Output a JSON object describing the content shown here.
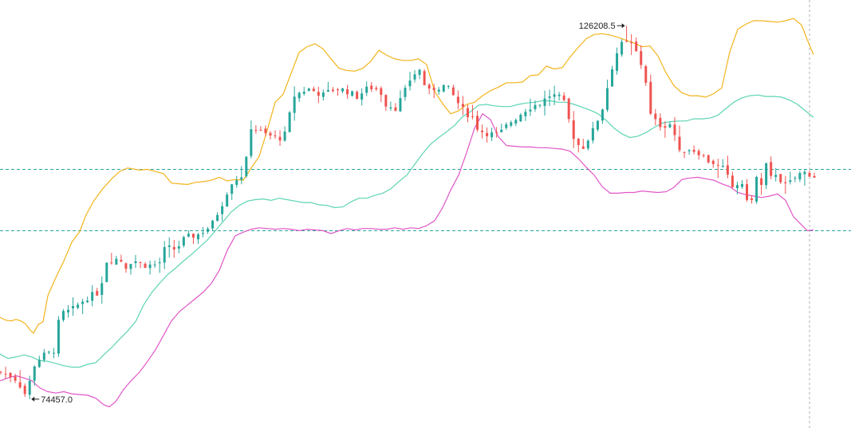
{
  "chart_data": {
    "type": "candlestick",
    "indicator": "bollinger-bands",
    "annotations": {
      "high_label": "126208.5",
      "low_label": "74457.0"
    },
    "price_range": {
      "y_max": 128000,
      "y_min": 73000
    },
    "reference_lines": [
      {
        "name": "upper-reference",
        "value": 106300,
        "style": "dashed",
        "color": "#26a69a"
      },
      {
        "name": "lower-reference",
        "value": 97800,
        "style": "dashed",
        "color": "#26a69a"
      }
    ],
    "last_price_marker": {
      "style": "dashed",
      "color": "#b0b0b0"
    },
    "colors": {
      "up": "#26a69a",
      "down": "#ef5350",
      "upper_band": "#f2b41b",
      "middle_band": "#5dd4b4",
      "lower_band": "#e056c8"
    },
    "candle_count": 170,
    "close_path": [
      [
        0,
        78200
      ],
      [
        10,
        77500
      ],
      [
        17,
        75800
      ],
      [
        19,
        74900
      ],
      [
        26,
        79500
      ],
      [
        32,
        80500
      ],
      [
        40,
        81000
      ],
      [
        45,
        86200
      ],
      [
        54,
        86800
      ],
      [
        65,
        88500
      ],
      [
        75,
        89300
      ],
      [
        80,
        93600
      ],
      [
        90,
        94000
      ],
      [
        95,
        92800
      ],
      [
        100,
        93800
      ],
      [
        110,
        93000
      ],
      [
        120,
        93100
      ],
      [
        125,
        95500
      ],
      [
        133,
        95200
      ],
      [
        140,
        96800
      ],
      [
        150,
        97300
      ],
      [
        160,
        98500
      ],
      [
        168,
        101500
      ],
      [
        175,
        104500
      ],
      [
        185,
        105700
      ],
      [
        190,
        112200
      ],
      [
        200,
        111200
      ],
      [
        207,
        110800
      ],
      [
        215,
        110600
      ],
      [
        223,
        116500
      ],
      [
        233,
        117500
      ],
      [
        245,
        116600
      ],
      [
        255,
        117600
      ],
      [
        265,
        117000
      ],
      [
        270,
        116300
      ],
      [
        280,
        117700
      ],
      [
        288,
        117300
      ],
      [
        292,
        115400
      ],
      [
        300,
        114800
      ],
      [
        306,
        116700
      ],
      [
        312,
        119200
      ],
      [
        318,
        120100
      ],
      [
        324,
        116900
      ],
      [
        330,
        117600
      ],
      [
        338,
        117900
      ],
      [
        343,
        116700
      ],
      [
        348,
        115300
      ],
      [
        353,
        114100
      ],
      [
        358,
        113700
      ],
      [
        363,
        111700
      ],
      [
        370,
        111300
      ],
      [
        378,
        111000
      ],
      [
        386,
        112700
      ],
      [
        393,
        113700
      ],
      [
        400,
        114800
      ],
      [
        410,
        115500
      ],
      [
        418,
        116700
      ],
      [
        427,
        116000
      ],
      [
        435,
        110900
      ],
      [
        441,
        109000
      ],
      [
        450,
        111700
      ],
      [
        458,
        115200
      ],
      [
        463,
        119700
      ],
      [
        470,
        123500
      ],
      [
        478,
        123900
      ],
      [
        485,
        121800
      ],
      [
        490,
        118500
      ],
      [
        494,
        113400
      ],
      [
        502,
        112300
      ],
      [
        510,
        112700
      ],
      [
        515,
        108500
      ],
      [
        522,
        109200
      ],
      [
        530,
        108700
      ],
      [
        538,
        107400
      ],
      [
        542,
        107200
      ],
      [
        546,
        106400
      ],
      [
        550,
        106400
      ],
      [
        555,
        103700
      ],
      [
        559,
        104300
      ],
      [
        563,
        103900
      ],
      [
        566,
        102600
      ],
      [
        570,
        101500
      ],
      [
        574,
        105200
      ],
      [
        578,
        103900
      ],
      [
        582,
        107300
      ],
      [
        586,
        104400
      ],
      [
        590,
        106400
      ],
      [
        594,
        103800
      ],
      [
        600,
        104500
      ],
      [
        606,
        105600
      ],
      [
        612,
        105900
      ],
      [
        618,
        105300
      ]
    ],
    "upper_band_path": [
      [
        0,
        85800
      ],
      [
        7,
        85400
      ],
      [
        14,
        85300
      ],
      [
        20,
        85500
      ],
      [
        26,
        85300
      ],
      [
        32,
        84900
      ],
      [
        38,
        84000
      ],
      [
        42,
        83600
      ],
      [
        48,
        84800
      ],
      [
        54,
        85200
      ],
      [
        60,
        88800
      ],
      [
        70,
        91300
      ],
      [
        80,
        93600
      ],
      [
        90,
        96200
      ],
      [
        100,
        97700
      ],
      [
        108,
        100000
      ],
      [
        118,
        102000
      ],
      [
        128,
        103500
      ],
      [
        140,
        105000
      ],
      [
        150,
        106000
      ],
      [
        160,
        106500
      ],
      [
        175,
        106200
      ],
      [
        185,
        106300
      ],
      [
        195,
        106000
      ],
      [
        205,
        105700
      ],
      [
        215,
        104400
      ],
      [
        225,
        104300
      ],
      [
        235,
        104200
      ],
      [
        245,
        104500
      ],
      [
        255,
        104600
      ],
      [
        265,
        104800
      ],
      [
        275,
        105200
      ],
      [
        285,
        104700
      ],
      [
        295,
        104900
      ],
      [
        305,
        104800
      ],
      [
        315,
        106500
      ],
      [
        325,
        108100
      ],
      [
        335,
        111700
      ],
      [
        345,
        115600
      ],
      [
        355,
        116700
      ],
      [
        365,
        119600
      ],
      [
        375,
        122500
      ],
      [
        385,
        123300
      ],
      [
        395,
        123700
      ],
      [
        405,
        123000
      ],
      [
        415,
        121600
      ],
      [
        425,
        120300
      ],
      [
        435,
        120000
      ],
      [
        445,
        119900
      ],
      [
        455,
        120300
      ],
      [
        465,
        121300
      ],
      [
        475,
        122800
      ],
      [
        485,
        122100
      ],
      [
        495,
        121600
      ],
      [
        505,
        121400
      ],
      [
        515,
        121400
      ],
      [
        525,
        121600
      ],
      [
        535,
        120800
      ],
      [
        545,
        117100
      ],
      [
        555,
        115400
      ],
      [
        565,
        114000
      ],
      [
        575,
        114400
      ],
      [
        585,
        115300
      ],
      [
        595,
        115600
      ],
      [
        605,
        116500
      ],
      [
        615,
        117200
      ],
      [
        625,
        117700
      ],
      [
        635,
        118300
      ],
      [
        645,
        118300
      ],
      [
        655,
        118400
      ],
      [
        665,
        119300
      ],
      [
        675,
        119400
      ],
      [
        685,
        120600
      ],
      [
        695,
        120200
      ],
      [
        705,
        120400
      ],
      [
        715,
        121900
      ],
      [
        725,
        123200
      ],
      [
        735,
        124400
      ],
      [
        745,
        125000
      ],
      [
        755,
        125100
      ],
      [
        765,
        124900
      ],
      [
        775,
        124600
      ],
      [
        785,
        124200
      ],
      [
        795,
        123800
      ],
      [
        805,
        123300
      ],
      [
        815,
        123400
      ],
      [
        825,
        122000
      ],
      [
        835,
        119700
      ],
      [
        845,
        117900
      ],
      [
        855,
        116900
      ],
      [
        865,
        116500
      ],
      [
        875,
        116500
      ],
      [
        885,
        116300
      ],
      [
        895,
        116800
      ],
      [
        905,
        117600
      ],
      [
        915,
        122600
      ],
      [
        925,
        125700
      ],
      [
        935,
        126400
      ],
      [
        945,
        126900
      ],
      [
        955,
        126900
      ],
      [
        965,
        126800
      ],
      [
        975,
        126700
      ],
      [
        985,
        126900
      ],
      [
        995,
        127200
      ],
      [
        1005,
        126300
      ],
      [
        1012,
        124300
      ],
      [
        1020,
        122200
      ]
    ],
    "middle_band_path": [
      [
        0,
        80700
      ],
      [
        10,
        80100
      ],
      [
        20,
        80300
      ],
      [
        30,
        80600
      ],
      [
        40,
        80300
      ],
      [
        50,
        79800
      ],
      [
        60,
        79700
      ],
      [
        70,
        79400
      ],
      [
        80,
        79100
      ],
      [
        90,
        78900
      ],
      [
        100,
        78900
      ],
      [
        110,
        79300
      ],
      [
        120,
        79500
      ],
      [
        130,
        80600
      ],
      [
        140,
        81600
      ],
      [
        150,
        82800
      ],
      [
        160,
        83900
      ],
      [
        170,
        85200
      ],
      [
        180,
        87500
      ],
      [
        190,
        89200
      ],
      [
        200,
        90500
      ],
      [
        210,
        91700
      ],
      [
        220,
        92600
      ],
      [
        230,
        93600
      ],
      [
        240,
        94500
      ],
      [
        250,
        95500
      ],
      [
        260,
        96500
      ],
      [
        270,
        97800
      ],
      [
        280,
        99100
      ],
      [
        290,
        100400
      ],
      [
        300,
        101300
      ],
      [
        310,
        101900
      ],
      [
        320,
        102100
      ],
      [
        330,
        102200
      ],
      [
        340,
        102000
      ],
      [
        350,
        102300
      ],
      [
        360,
        102100
      ],
      [
        370,
        101900
      ],
      [
        380,
        101700
      ],
      [
        390,
        101700
      ],
      [
        400,
        101400
      ],
      [
        410,
        101300
      ],
      [
        420,
        101000
      ],
      [
        430,
        101100
      ],
      [
        440,
        101800
      ],
      [
        450,
        102300
      ],
      [
        460,
        102300
      ],
      [
        470,
        102700
      ],
      [
        480,
        103000
      ],
      [
        490,
        103600
      ],
      [
        500,
        104600
      ],
      [
        510,
        105500
      ],
      [
        520,
        107000
      ],
      [
        530,
        108500
      ],
      [
        540,
        109800
      ],
      [
        550,
        110700
      ],
      [
        560,
        111500
      ],
      [
        570,
        112400
      ],
      [
        580,
        113600
      ],
      [
        590,
        114300
      ],
      [
        600,
        115200
      ],
      [
        610,
        115300
      ],
      [
        620,
        115100
      ],
      [
        630,
        115000
      ],
      [
        640,
        115000
      ],
      [
        650,
        115300
      ],
      [
        660,
        115500
      ],
      [
        670,
        115600
      ],
      [
        680,
        115800
      ],
      [
        690,
        115800
      ],
      [
        700,
        115600
      ],
      [
        710,
        115600
      ],
      [
        720,
        115300
      ],
      [
        730,
        114900
      ],
      [
        740,
        114500
      ],
      [
        750,
        114000
      ],
      [
        760,
        113100
      ],
      [
        770,
        112000
      ],
      [
        780,
        111200
      ],
      [
        790,
        110700
      ],
      [
        800,
        110900
      ],
      [
        810,
        111400
      ],
      [
        820,
        112100
      ],
      [
        830,
        112700
      ],
      [
        840,
        112900
      ],
      [
        850,
        113000
      ],
      [
        860,
        113000
      ],
      [
        870,
        113300
      ],
      [
        880,
        113300
      ],
      [
        890,
        113400
      ],
      [
        900,
        113800
      ],
      [
        910,
        114700
      ],
      [
        920,
        115600
      ],
      [
        930,
        116200
      ],
      [
        940,
        116500
      ],
      [
        950,
        116600
      ],
      [
        960,
        116400
      ],
      [
        970,
        116400
      ],
      [
        980,
        116300
      ],
      [
        990,
        115900
      ],
      [
        1000,
        115300
      ],
      [
        1010,
        114400
      ],
      [
        1020,
        113500
      ]
    ],
    "lower_band_path": [
      [
        0,
        77000
      ],
      [
        10,
        77400
      ],
      [
        20,
        77700
      ],
      [
        30,
        77400
      ],
      [
        40,
        77000
      ],
      [
        50,
        76000
      ],
      [
        60,
        75500
      ],
      [
        70,
        75300
      ],
      [
        80,
        75500
      ],
      [
        90,
        75200
      ],
      [
        100,
        75100
      ],
      [
        110,
        75000
      ],
      [
        120,
        74600
      ],
      [
        130,
        73700
      ],
      [
        137,
        73400
      ],
      [
        145,
        74100
      ],
      [
        155,
        75800
      ],
      [
        165,
        77100
      ],
      [
        175,
        78200
      ],
      [
        185,
        79700
      ],
      [
        195,
        81300
      ],
      [
        205,
        83300
      ],
      [
        215,
        85300
      ],
      [
        225,
        86600
      ],
      [
        235,
        87500
      ],
      [
        245,
        88400
      ],
      [
        255,
        89300
      ],
      [
        265,
        90500
      ],
      [
        275,
        92300
      ],
      [
        285,
        95100
      ],
      [
        295,
        97100
      ],
      [
        305,
        97600
      ],
      [
        315,
        98000
      ],
      [
        325,
        98200
      ],
      [
        335,
        98100
      ],
      [
        345,
        98000
      ],
      [
        355,
        98100
      ],
      [
        365,
        98000
      ],
      [
        375,
        97800
      ],
      [
        385,
        98000
      ],
      [
        395,
        97900
      ],
      [
        405,
        97800
      ],
      [
        415,
        97400
      ],
      [
        425,
        97800
      ],
      [
        435,
        98100
      ],
      [
        445,
        97900
      ],
      [
        455,
        98100
      ],
      [
        465,
        98100
      ],
      [
        475,
        98000
      ],
      [
        485,
        98000
      ],
      [
        495,
        98200
      ],
      [
        505,
        98000
      ],
      [
        515,
        98200
      ],
      [
        525,
        98100
      ],
      [
        535,
        98500
      ],
      [
        545,
        99200
      ],
      [
        555,
        101000
      ],
      [
        565,
        103400
      ],
      [
        575,
        105500
      ],
      [
        585,
        108600
      ],
      [
        595,
        112000
      ],
      [
        605,
        114000
      ],
      [
        615,
        113200
      ],
      [
        625,
        110800
      ],
      [
        635,
        109600
      ],
      [
        645,
        109500
      ],
      [
        655,
        109400
      ],
      [
        665,
        109400
      ],
      [
        675,
        109300
      ],
      [
        685,
        109300
      ],
      [
        695,
        109200
      ],
      [
        705,
        109100
      ],
      [
        715,
        108800
      ],
      [
        725,
        107800
      ],
      [
        735,
        106600
      ],
      [
        745,
        105500
      ],
      [
        755,
        103900
      ],
      [
        765,
        103000
      ],
      [
        775,
        103000
      ],
      [
        785,
        103100
      ],
      [
        795,
        103100
      ],
      [
        805,
        103300
      ],
      [
        815,
        103200
      ],
      [
        825,
        103100
      ],
      [
        835,
        103200
      ],
      [
        845,
        103800
      ],
      [
        855,
        104900
      ],
      [
        865,
        105100
      ],
      [
        875,
        105200
      ],
      [
        885,
        105000
      ],
      [
        895,
        104800
      ],
      [
        905,
        104300
      ],
      [
        915,
        103900
      ],
      [
        925,
        103100
      ],
      [
        935,
        102800
      ],
      [
        945,
        102600
      ],
      [
        955,
        102400
      ],
      [
        965,
        102600
      ],
      [
        975,
        102900
      ],
      [
        985,
        102000
      ],
      [
        995,
        99700
      ],
      [
        1005,
        98600
      ],
      [
        1012,
        97800
      ],
      [
        1020,
        97900
      ]
    ]
  }
}
